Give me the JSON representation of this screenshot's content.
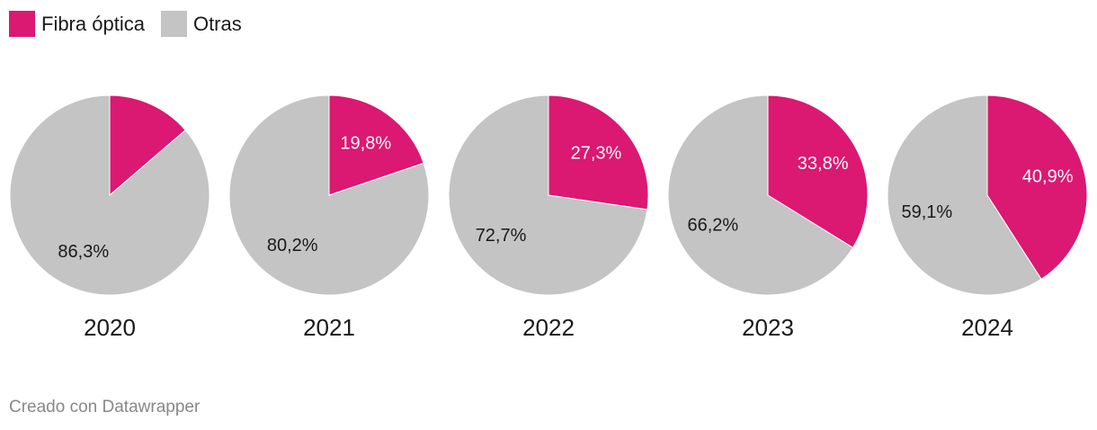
{
  "legend": {
    "items": [
      {
        "label": "Fibra óptica",
        "color": "#db1872"
      },
      {
        "label": "Otras",
        "color": "#c4c4c4"
      }
    ]
  },
  "chart_data": [
    {
      "type": "pie",
      "title": "2020",
      "categories": [
        "Fibra óptica",
        "Otras"
      ],
      "values": [
        13.7,
        86.3
      ],
      "labels": [
        "",
        "86,3%"
      ],
      "colors": [
        "#db1872",
        "#c4c4c4"
      ]
    },
    {
      "type": "pie",
      "title": "2021",
      "categories": [
        "Fibra óptica",
        "Otras"
      ],
      "values": [
        19.8,
        80.2
      ],
      "labels": [
        "19,8%",
        "80,2%"
      ],
      "colors": [
        "#db1872",
        "#c4c4c4"
      ]
    },
    {
      "type": "pie",
      "title": "2022",
      "categories": [
        "Fibra óptica",
        "Otras"
      ],
      "values": [
        27.3,
        72.7
      ],
      "labels": [
        "27,3%",
        "72,7%"
      ],
      "colors": [
        "#db1872",
        "#c4c4c4"
      ]
    },
    {
      "type": "pie",
      "title": "2023",
      "categories": [
        "Fibra óptica",
        "Otras"
      ],
      "values": [
        33.8,
        66.2
      ],
      "labels": [
        "33,8%",
        "66,2%"
      ],
      "colors": [
        "#db1872",
        "#c4c4c4"
      ]
    },
    {
      "type": "pie",
      "title": "2024",
      "categories": [
        "Fibra óptica",
        "Otras"
      ],
      "values": [
        40.9,
        59.1
      ],
      "labels": [
        "40,9%",
        "59,1%"
      ],
      "colors": [
        "#db1872",
        "#c4c4c4"
      ]
    }
  ],
  "footer": {
    "credit": "Creado con Datawrapper"
  }
}
